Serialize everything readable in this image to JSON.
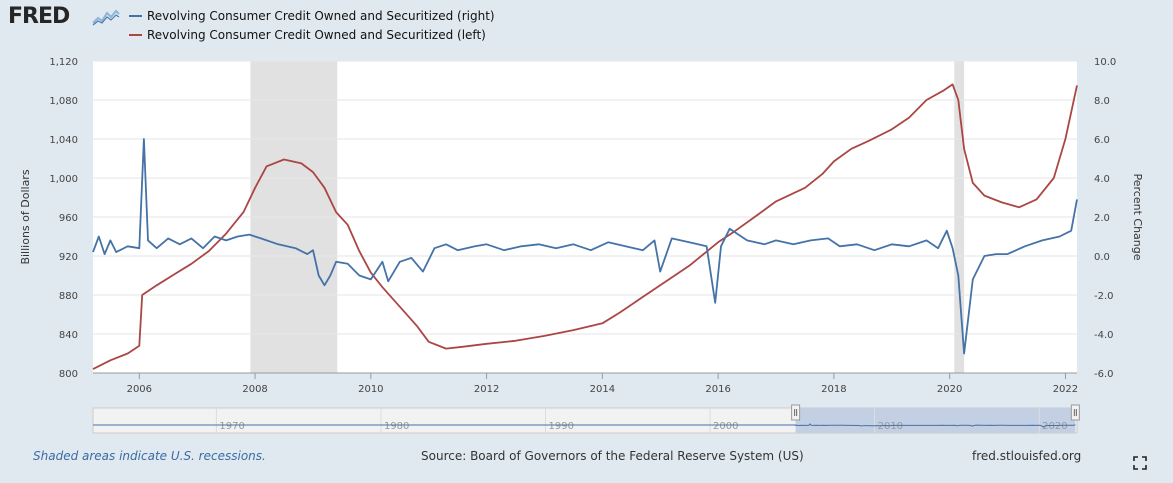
{
  "header": {
    "logo": "FRED",
    "logo_icon": "fred-sparkline-icon"
  },
  "legend": [
    {
      "label": "Revolving Consumer Credit Owned and Securitized (right)",
      "color": "#4572a7"
    },
    {
      "label": "Revolving Consumer Credit Owned and Securitized (left)",
      "color": "#aa4643"
    }
  ],
  "chart_data": {
    "type": "line",
    "title": "",
    "xlabel": "",
    "ylabel_left": "Billions of Dollars",
    "ylabel_right": "Percent Change",
    "xlim": [
      2005.2,
      2022.2
    ],
    "ylim_left": [
      800,
      1120
    ],
    "ylim_right": [
      -6.0,
      10.0
    ],
    "x_ticks": [
      "2006",
      "2008",
      "2010",
      "2012",
      "2014",
      "2016",
      "2018",
      "2020",
      "2022"
    ],
    "y_left_ticks": [
      "800",
      "840",
      "880",
      "920",
      "960",
      "1,000",
      "1,040",
      "1,080",
      "1,120"
    ],
    "y_right_ticks": [
      "-6.0",
      "-4.0",
      "-2.0",
      "0.0",
      "2.0",
      "4.0",
      "6.0",
      "8.0",
      "10.0"
    ],
    "grid": "horizontal",
    "legend_position": "top-left",
    "recessions": [
      [
        2007.92,
        2009.42
      ],
      [
        2020.08,
        2020.25
      ]
    ],
    "series": [
      {
        "name": "Revolving Consumer Credit Owned and Securitized (left)",
        "axis": "left",
        "color": "#aa4643",
        "points": [
          [
            2005.2,
            804
          ],
          [
            2005.5,
            813
          ],
          [
            2005.8,
            820
          ],
          [
            2006.0,
            828
          ],
          [
            2006.05,
            880
          ],
          [
            2006.3,
            890
          ],
          [
            2006.6,
            901
          ],
          [
            2006.9,
            912
          ],
          [
            2007.2,
            925
          ],
          [
            2007.5,
            943
          ],
          [
            2007.8,
            965
          ],
          [
            2008.0,
            990
          ],
          [
            2008.2,
            1012
          ],
          [
            2008.5,
            1019
          ],
          [
            2008.8,
            1015
          ],
          [
            2009.0,
            1006
          ],
          [
            2009.2,
            990
          ],
          [
            2009.4,
            965
          ],
          [
            2009.6,
            952
          ],
          [
            2009.8,
            925
          ],
          [
            2010.0,
            903
          ],
          [
            2010.2,
            888
          ],
          [
            2010.5,
            868
          ],
          [
            2010.8,
            848
          ],
          [
            2011.0,
            832
          ],
          [
            2011.3,
            825
          ],
          [
            2011.6,
            827
          ],
          [
            2012.0,
            830
          ],
          [
            2012.5,
            833
          ],
          [
            2013.0,
            838
          ],
          [
            2013.5,
            844
          ],
          [
            2014.0,
            851
          ],
          [
            2014.3,
            862
          ],
          [
            2014.7,
            878
          ],
          [
            2015.0,
            890
          ],
          [
            2015.5,
            910
          ],
          [
            2016.0,
            934
          ],
          [
            2016.3,
            946
          ],
          [
            2016.7,
            963
          ],
          [
            2017.0,
            976
          ],
          [
            2017.5,
            990
          ],
          [
            2017.8,
            1004
          ],
          [
            2018.0,
            1017
          ],
          [
            2018.3,
            1030
          ],
          [
            2018.6,
            1038
          ],
          [
            2019.0,
            1050
          ],
          [
            2019.3,
            1062
          ],
          [
            2019.6,
            1080
          ],
          [
            2019.9,
            1090
          ],
          [
            2020.05,
            1096
          ],
          [
            2020.15,
            1080
          ],
          [
            2020.25,
            1030
          ],
          [
            2020.4,
            995
          ],
          [
            2020.6,
            982
          ],
          [
            2020.9,
            975
          ],
          [
            2021.2,
            970
          ],
          [
            2021.5,
            978
          ],
          [
            2021.8,
            1000
          ],
          [
            2022.0,
            1040
          ],
          [
            2022.2,
            1095
          ]
        ]
      },
      {
        "name": "Revolving Consumer Credit Owned and Securitized (right)",
        "axis": "right",
        "color": "#4572a7",
        "points": [
          [
            2005.2,
            0.2
          ],
          [
            2005.3,
            1.0
          ],
          [
            2005.4,
            0.1
          ],
          [
            2005.5,
            0.8
          ],
          [
            2005.6,
            0.2
          ],
          [
            2005.8,
            0.5
          ],
          [
            2006.0,
            0.4
          ],
          [
            2006.08,
            6.0
          ],
          [
            2006.15,
            0.8
          ],
          [
            2006.3,
            0.4
          ],
          [
            2006.5,
            0.9
          ],
          [
            2006.7,
            0.6
          ],
          [
            2006.9,
            0.9
          ],
          [
            2007.1,
            0.4
          ],
          [
            2007.3,
            1.0
          ],
          [
            2007.5,
            0.8
          ],
          [
            2007.7,
            1.0
          ],
          [
            2007.9,
            1.1
          ],
          [
            2008.1,
            0.9
          ],
          [
            2008.4,
            0.6
          ],
          [
            2008.7,
            0.4
          ],
          [
            2008.9,
            0.1
          ],
          [
            2009.0,
            0.3
          ],
          [
            2009.1,
            -1.0
          ],
          [
            2009.2,
            -1.5
          ],
          [
            2009.3,
            -1.0
          ],
          [
            2009.4,
            -0.3
          ],
          [
            2009.6,
            -0.4
          ],
          [
            2009.8,
            -1.0
          ],
          [
            2010.0,
            -1.2
          ],
          [
            2010.2,
            -0.3
          ],
          [
            2010.3,
            -1.3
          ],
          [
            2010.5,
            -0.3
          ],
          [
            2010.7,
            -0.1
          ],
          [
            2010.9,
            -0.8
          ],
          [
            2011.1,
            0.4
          ],
          [
            2011.3,
            0.6
          ],
          [
            2011.5,
            0.3
          ],
          [
            2011.8,
            0.5
          ],
          [
            2012.0,
            0.6
          ],
          [
            2012.3,
            0.3
          ],
          [
            2012.6,
            0.5
          ],
          [
            2012.9,
            0.6
          ],
          [
            2013.2,
            0.4
          ],
          [
            2013.5,
            0.6
          ],
          [
            2013.8,
            0.3
          ],
          [
            2014.1,
            0.7
          ],
          [
            2014.4,
            0.5
          ],
          [
            2014.7,
            0.3
          ],
          [
            2014.9,
            0.8
          ],
          [
            2015.0,
            -0.8
          ],
          [
            2015.2,
            0.9
          ],
          [
            2015.5,
            0.7
          ],
          [
            2015.8,
            0.5
          ],
          [
            2015.95,
            -2.4
          ],
          [
            2016.05,
            0.5
          ],
          [
            2016.2,
            1.4
          ],
          [
            2016.5,
            0.8
          ],
          [
            2016.8,
            0.6
          ],
          [
            2017.0,
            0.8
          ],
          [
            2017.3,
            0.6
          ],
          [
            2017.6,
            0.8
          ],
          [
            2017.9,
            0.9
          ],
          [
            2018.1,
            0.5
          ],
          [
            2018.4,
            0.6
          ],
          [
            2018.7,
            0.3
          ],
          [
            2019.0,
            0.6
          ],
          [
            2019.3,
            0.5
          ],
          [
            2019.6,
            0.8
          ],
          [
            2019.8,
            0.4
          ],
          [
            2019.95,
            1.3
          ],
          [
            2020.05,
            0.4
          ],
          [
            2020.15,
            -1.0
          ],
          [
            2020.25,
            -5.0
          ],
          [
            2020.4,
            -1.2
          ],
          [
            2020.6,
            0.0
          ],
          [
            2020.8,
            0.1
          ],
          [
            2021.0,
            0.1
          ],
          [
            2021.3,
            0.5
          ],
          [
            2021.6,
            0.8
          ],
          [
            2021.9,
            1.0
          ],
          [
            2022.1,
            1.3
          ],
          [
            2022.2,
            2.9
          ]
        ]
      }
    ],
    "navigator": {
      "labels": [
        "1970",
        "1980",
        "1990",
        "2000",
        "2010",
        "2020"
      ],
      "selected": [
        2005.2,
        2022.2
      ]
    }
  },
  "footer": {
    "recession_note": "Shaded areas indicate U.S. recessions.",
    "source": "Source: Board of Governors of the Federal Reserve System (US)",
    "site": "fred.stlouisfed.org"
  }
}
